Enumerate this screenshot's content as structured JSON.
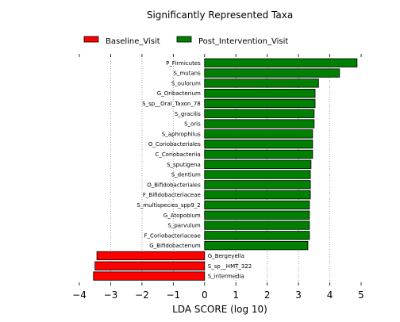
{
  "chart_data": {
    "type": "bar",
    "orientation": "horizontal",
    "title": "Significantly Represented Taxa",
    "xlabel": "LDA SCORE (log 10)",
    "ylabel": "",
    "xlim": [
      -4,
      5
    ],
    "xticks": [
      -4,
      -3,
      -2,
      -1,
      0,
      1,
      2,
      3,
      4,
      5
    ],
    "xtick_labels": [
      "−4",
      "−3",
      "−2",
      "−1",
      "0",
      "1",
      "2",
      "3",
      "4",
      "5"
    ],
    "grid": "vertical dotted",
    "legend_position": "top",
    "legend": [
      {
        "name": "Baseline_Visit",
        "color": "#ff0000"
      },
      {
        "name": "Post_Intervention_Visit",
        "color": "#008000"
      }
    ],
    "categories": [
      "P_Firmicutes",
      "S_mutans",
      "S_oulorum",
      "G_Oribacterium",
      "S_sp__Oral_Taxon_78",
      "S_gracilis",
      "S_oris",
      "S_aphrophilus",
      "O_Coriobacteriales",
      "C_Coriobacteriia",
      "S_sputigena",
      "S_dentium",
      "O_Bifidobacteriales",
      "F_Bifidobacteriaceae",
      "S_multispecies_spp9_2",
      "G_Atopobium",
      "S_parvulum",
      "F_Coriobacteriaceae",
      "G_Bifidobacterium",
      "G_Bergeyella",
      "S_sp__HMT_322",
      "S_intermedia"
    ],
    "values": [
      4.87,
      4.31,
      3.64,
      3.53,
      3.53,
      3.5,
      3.5,
      3.45,
      3.45,
      3.45,
      3.4,
      3.38,
      3.38,
      3.38,
      3.35,
      3.35,
      3.35,
      3.35,
      3.3,
      -3.44,
      -3.5,
      -3.55
    ],
    "groups": [
      "Post_Intervention_Visit",
      "Post_Intervention_Visit",
      "Post_Intervention_Visit",
      "Post_Intervention_Visit",
      "Post_Intervention_Visit",
      "Post_Intervention_Visit",
      "Post_Intervention_Visit",
      "Post_Intervention_Visit",
      "Post_Intervention_Visit",
      "Post_Intervention_Visit",
      "Post_Intervention_Visit",
      "Post_Intervention_Visit",
      "Post_Intervention_Visit",
      "Post_Intervention_Visit",
      "Post_Intervention_Visit",
      "Post_Intervention_Visit",
      "Post_Intervention_Visit",
      "Post_Intervention_Visit",
      "Post_Intervention_Visit",
      "Baseline_Visit",
      "Baseline_Visit",
      "Baseline_Visit"
    ]
  }
}
